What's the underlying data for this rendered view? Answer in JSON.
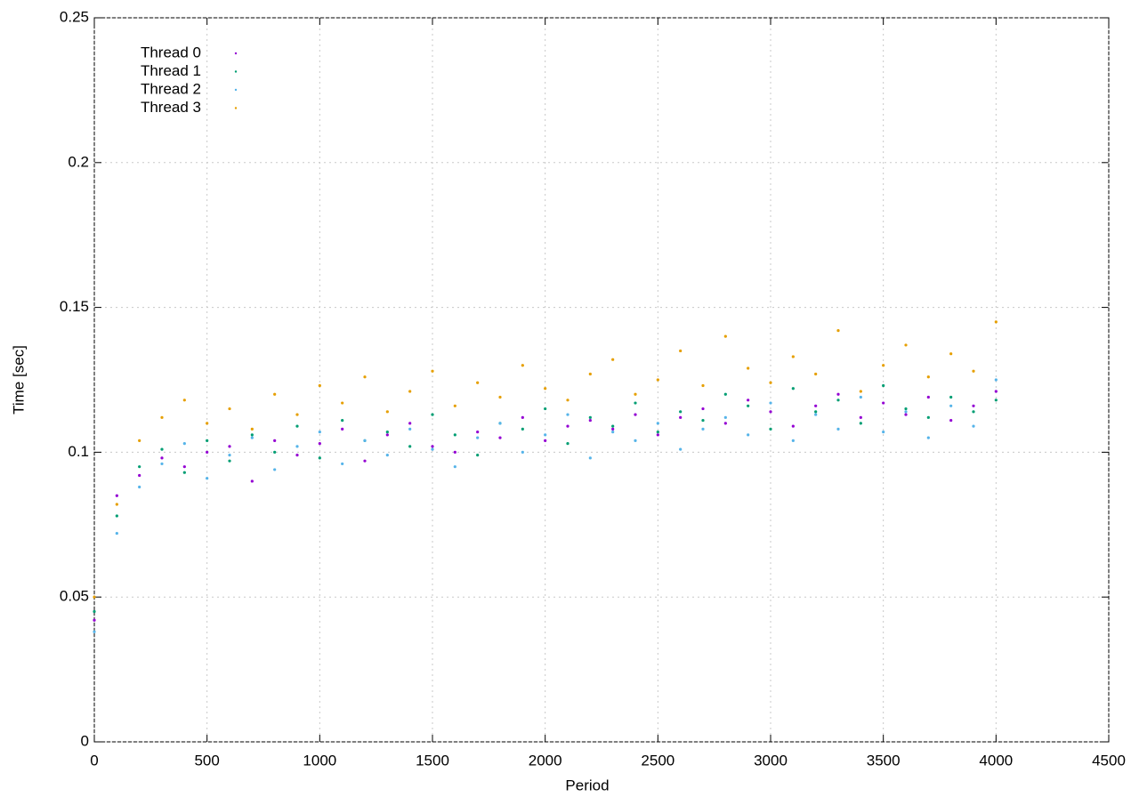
{
  "chart_data": {
    "type": "scatter",
    "xlabel": "Period",
    "ylabel": "Time [sec]",
    "xlim": [
      0,
      4500
    ],
    "xticks": [
      0,
      500,
      1000,
      1500,
      2000,
      2500,
      3000,
      3500,
      4000,
      4500
    ],
    "ylim": [
      0,
      0.25
    ],
    "yticks": [
      0,
      0.05,
      0.1,
      0.15,
      0.2,
      0.25
    ],
    "grid": true,
    "legend": "top-left",
    "x": [
      0,
      100,
      200,
      300,
      400,
      500,
      600,
      700,
      800,
      900,
      1000,
      1100,
      1200,
      1300,
      1400,
      1500,
      1600,
      1700,
      1800,
      1900,
      2000,
      2100,
      2200,
      2300,
      2400,
      2500,
      2600,
      2700,
      2800,
      2900,
      3000,
      3100,
      3200,
      3300,
      3400,
      3500,
      3600,
      3700,
      3800,
      3900,
      4000
    ],
    "series": [
      {
        "name": "Thread 0",
        "color": "#9400d3",
        "values": [
          0.042,
          0.085,
          0.092,
          0.098,
          0.095,
          0.1,
          0.102,
          0.09,
          0.104,
          0.099,
          0.103,
          0.108,
          0.097,
          0.106,
          0.11,
          0.102,
          0.1,
          0.107,
          0.105,
          0.112,
          0.104,
          0.109,
          0.111,
          0.108,
          0.113,
          0.106,
          0.112,
          0.115,
          0.11,
          0.118,
          0.114,
          0.109,
          0.116,
          0.12,
          0.112,
          0.117,
          0.113,
          0.119,
          0.111,
          0.116,
          0.121
        ]
      },
      {
        "name": "Thread 1",
        "color": "#009e73",
        "values": [
          0.045,
          0.078,
          0.095,
          0.101,
          0.093,
          0.104,
          0.097,
          0.106,
          0.1,
          0.109,
          0.098,
          0.111,
          0.104,
          0.107,
          0.102,
          0.113,
          0.106,
          0.099,
          0.11,
          0.108,
          0.115,
          0.103,
          0.112,
          0.109,
          0.117,
          0.107,
          0.114,
          0.111,
          0.12,
          0.116,
          0.108,
          0.122,
          0.114,
          0.118,
          0.11,
          0.123,
          0.115,
          0.112,
          0.119,
          0.114,
          0.118
        ]
      },
      {
        "name": "Thread 2",
        "color": "#56b4e9",
        "values": [
          0.038,
          0.072,
          0.088,
          0.096,
          0.103,
          0.091,
          0.099,
          0.105,
          0.094,
          0.102,
          0.107,
          0.096,
          0.104,
          0.099,
          0.108,
          0.101,
          0.095,
          0.105,
          0.11,
          0.1,
          0.106,
          0.113,
          0.098,
          0.107,
          0.104,
          0.11,
          0.101,
          0.108,
          0.112,
          0.106,
          0.117,
          0.104,
          0.113,
          0.108,
          0.119,
          0.107,
          0.114,
          0.105,
          0.116,
          0.109,
          0.125
        ]
      },
      {
        "name": "Thread 3",
        "color": "#e69f00",
        "values": [
          0.05,
          0.082,
          0.104,
          0.112,
          0.118,
          0.11,
          0.115,
          0.108,
          0.12,
          0.113,
          0.123,
          0.117,
          0.126,
          0.114,
          0.121,
          0.128,
          0.116,
          0.124,
          0.119,
          0.13,
          0.122,
          0.118,
          0.127,
          0.132,
          0.12,
          0.125,
          0.135,
          0.123,
          0.14,
          0.129,
          0.124,
          0.133,
          0.127,
          0.142,
          0.121,
          0.13,
          0.137,
          0.126,
          0.134,
          0.128,
          0.145
        ]
      }
    ]
  }
}
